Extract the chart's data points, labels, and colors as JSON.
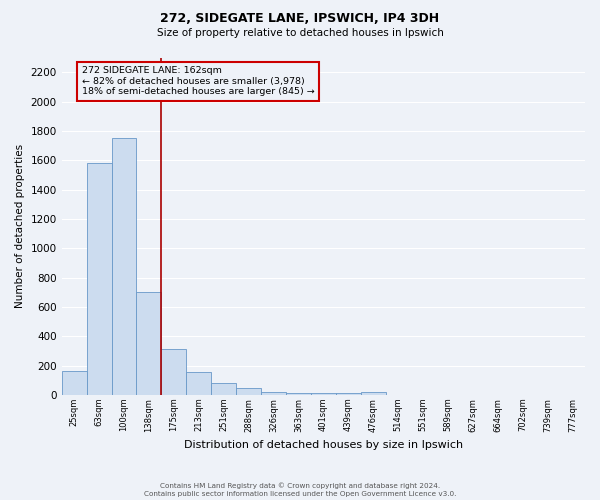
{
  "title": "272, SIDEGATE LANE, IPSWICH, IP4 3DH",
  "subtitle": "Size of property relative to detached houses in Ipswich",
  "xlabel": "Distribution of detached houses by size in Ipswich",
  "ylabel": "Number of detached properties",
  "bar_labels": [
    "25sqm",
    "63sqm",
    "100sqm",
    "138sqm",
    "175sqm",
    "213sqm",
    "251sqm",
    "288sqm",
    "326sqm",
    "363sqm",
    "401sqm",
    "439sqm",
    "476sqm",
    "514sqm",
    "551sqm",
    "589sqm",
    "627sqm",
    "664sqm",
    "702sqm",
    "739sqm",
    "777sqm"
  ],
  "bar_values": [
    160,
    1580,
    1750,
    700,
    315,
    155,
    80,
    45,
    20,
    15,
    10,
    10,
    20,
    0,
    0,
    0,
    0,
    0,
    0,
    0,
    0
  ],
  "bar_color": "#ccdcef",
  "bar_edge_color": "#6898c8",
  "annotation_text": "272 SIDEGATE LANE: 162sqm\n← 82% of detached houses are smaller (3,978)\n18% of semi-detached houses are larger (845) →",
  "annotation_box_edge": "#cc0000",
  "ylim": [
    0,
    2300
  ],
  "yticks": [
    0,
    200,
    400,
    600,
    800,
    1000,
    1200,
    1400,
    1600,
    1800,
    2000,
    2200
  ],
  "bg_color": "#eef2f8",
  "grid_color": "#ffffff",
  "footer_line1": "Contains HM Land Registry data © Crown copyright and database right 2024.",
  "footer_line2": "Contains public sector information licensed under the Open Government Licence v3.0."
}
